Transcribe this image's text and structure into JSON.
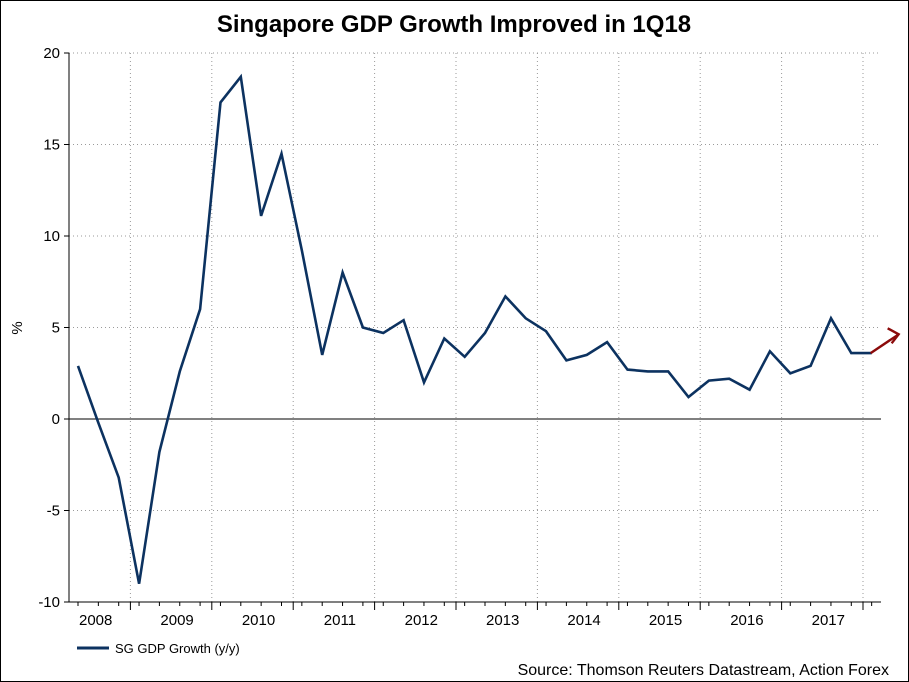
{
  "chart_data": {
    "type": "line",
    "title": "Singapore GDP Growth Improved in 1Q18",
    "ylabel": "%",
    "xlabel": "",
    "ylim": [
      -10,
      20
    ],
    "yticks": [
      -10,
      -5,
      0,
      5,
      10,
      15,
      20
    ],
    "year_labels": [
      "2008",
      "2009",
      "2010",
      "2011",
      "2012",
      "2013",
      "2014",
      "2015",
      "2016",
      "2017"
    ],
    "grid": true,
    "legend": "bottom-left",
    "series": [
      {
        "name": "SG GDP Growth (y/y)",
        "color": "#0c3260",
        "x": [
          "1Q08",
          "2Q08",
          "3Q08",
          "4Q08",
          "1Q09",
          "2Q09",
          "3Q09",
          "4Q09",
          "1Q10",
          "2Q10",
          "3Q10",
          "4Q10",
          "1Q11",
          "2Q11",
          "3Q11",
          "4Q11",
          "1Q12",
          "2Q12",
          "3Q12",
          "4Q12",
          "1Q13",
          "2Q13",
          "3Q13",
          "4Q13",
          "1Q14",
          "2Q14",
          "3Q14",
          "4Q14",
          "1Q15",
          "2Q15",
          "3Q15",
          "4Q15",
          "1Q16",
          "2Q16",
          "3Q16",
          "4Q16",
          "1Q17",
          "2Q17",
          "3Q17",
          "4Q17"
        ],
        "values": [
          2.9,
          -0.2,
          -3.2,
          -9.0,
          -1.8,
          2.6,
          6.0,
          17.3,
          18.7,
          11.1,
          14.5,
          9.2,
          3.5,
          8.0,
          5.0,
          4.7,
          5.4,
          2.0,
          4.4,
          3.4,
          4.7,
          6.7,
          5.5,
          4.8,
          3.2,
          3.5,
          4.2,
          2.7,
          2.6,
          2.6,
          1.2,
          2.1,
          2.2,
          1.6,
          3.7,
          2.5,
          2.9,
          5.5,
          3.6,
          3.6
        ]
      }
    ],
    "annotations": [
      {
        "type": "arrow",
        "color": "#8b0a0a",
        "from_value": 3.6,
        "to_value": 4.3,
        "direction": "up-right"
      }
    ],
    "source": "Source: Thomson Reuters Datastream, Action Forex"
  }
}
